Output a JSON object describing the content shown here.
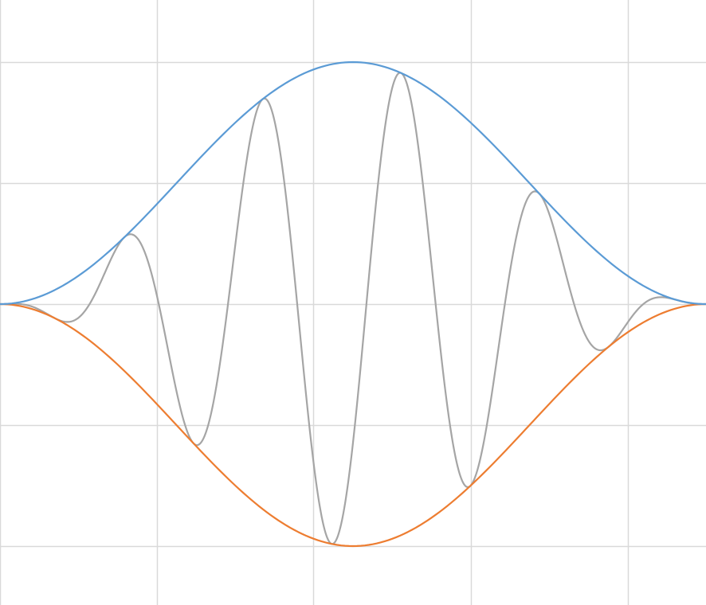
{
  "chart_data": {
    "type": "line",
    "title": "",
    "xlabel": "",
    "ylabel": "",
    "grid": true,
    "legend": "none",
    "xlim": [
      0,
      1
    ],
    "ylim": [
      -1.25,
      1.25
    ],
    "x_gridlines": [
      0,
      0.222,
      0.444,
      0.667,
      0.889
    ],
    "y_gridlines": [
      -1,
      -0.5,
      0,
      0.5,
      1
    ],
    "colors": {
      "grid": "#d9d9d9",
      "envelope_upper": "#5b9bd5",
      "envelope_lower": "#ed7d31",
      "wave_packet": "#a5a5a5"
    },
    "series": [
      {
        "key": "envelope_upper",
        "sample_count": 181,
        "envelope": {
          "center": 0.5,
          "amplitude": 1.0,
          "shape": "raised-cosine",
          "sign": 1
        }
      },
      {
        "key": "envelope_lower",
        "sample_count": 181,
        "envelope": {
          "center": 0.5,
          "amplitude": 1.0,
          "shape": "raised-cosine",
          "sign": -1
        }
      },
      {
        "key": "wave_packet",
        "sample_count": 901,
        "envelope": {
          "center": 0.5,
          "amplitude": 1.0,
          "shape": "raised-cosine",
          "sign": 1
        },
        "carrier": {
          "cycles_per_unit": 5.1,
          "phase_rad": -2.18
        }
      }
    ]
  }
}
